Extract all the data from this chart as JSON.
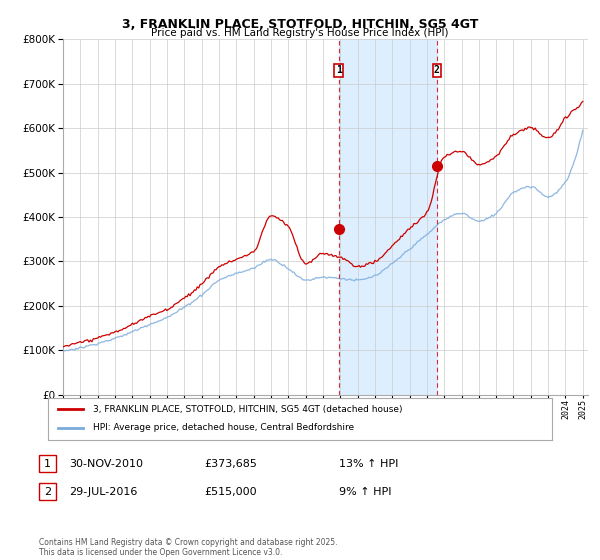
{
  "title": "3, FRANKLIN PLACE, STOTFOLD, HITCHIN, SG5 4GT",
  "subtitle": "Price paid vs. HM Land Registry's House Price Index (HPI)",
  "legend_line1": "3, FRANKLIN PLACE, STOTFOLD, HITCHIN, SG5 4GT (detached house)",
  "legend_line2": "HPI: Average price, detached house, Central Bedfordshire",
  "footnote": "Contains HM Land Registry data © Crown copyright and database right 2025.\nThis data is licensed under the Open Government Licence v3.0.",
  "transaction1_label": "1",
  "transaction1_date": "30-NOV-2010",
  "transaction1_price": "£373,685",
  "transaction1_hpi": "13% ↑ HPI",
  "transaction2_label": "2",
  "transaction2_date": "29-JUL-2016",
  "transaction2_price": "£515,000",
  "transaction2_hpi": "9% ↑ HPI",
  "line_color_red": "#cc0000",
  "line_color_blue": "#7aabdb",
  "shaded_color": "#ddeeff",
  "vline_color": "#cc0000",
  "vline1_x": 2010.92,
  "vline2_x": 2016.58,
  "ylim_min": 0,
  "ylim_max": 800000,
  "xtick_start": 1995,
  "xtick_end": 2025
}
